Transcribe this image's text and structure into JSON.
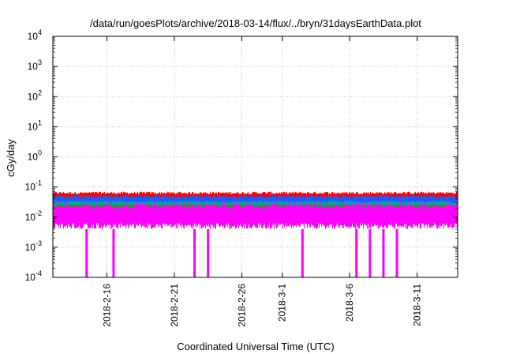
{
  "chart_data": {
    "type": "line",
    "title": "/data/run/goesPlots/archive/2018-03-14/flux/../bryn/31daysEarthData.plot",
    "xlabel": "Coordinated Universal Time (UTC)",
    "ylabel": "cGy/day",
    "yscale": "log",
    "ylim": [
      0.0001,
      10000
    ],
    "xlim": [
      "2018-02-12T00:00",
      "2018-03-14T00:00"
    ],
    "grid": true,
    "y_ticks": [
      {
        "value": 0.0001,
        "base": "10",
        "exp": "-4"
      },
      {
        "value": 0.001,
        "base": "10",
        "exp": "-3"
      },
      {
        "value": 0.01,
        "base": "10",
        "exp": "-2"
      },
      {
        "value": 0.1,
        "base": "10",
        "exp": "-1"
      },
      {
        "value": 1,
        "base": "10",
        "exp": "0"
      },
      {
        "value": 10,
        "base": "10",
        "exp": "1"
      },
      {
        "value": 100,
        "base": "10",
        "exp": "2"
      },
      {
        "value": 1000,
        "base": "10",
        "exp": "3"
      },
      {
        "value": 10000,
        "base": "10",
        "exp": "4"
      }
    ],
    "x_ticks": [
      "2018-2-16",
      "2018-2-21",
      "2018-2-26",
      "2018-3-1",
      "2018-3-6",
      "2018-3-11"
    ],
    "series": [
      {
        "color": "#ff0000",
        "typical_range": [
          0.03,
          0.07
        ]
      },
      {
        "color": "#1e5aff",
        "typical_range": [
          0.02,
          0.055
        ]
      },
      {
        "color": "#00a8a8",
        "typical_range": [
          0.015,
          0.035
        ]
      },
      {
        "color": "#00b000",
        "typical_range": [
          0.013,
          0.028
        ]
      },
      {
        "color": "#ff00ff",
        "typical_range": [
          0.004,
          0.03
        ],
        "dropouts": [
          "2018-02-14",
          "2018-02-16",
          "2018-02-22",
          "2018-02-23",
          "2018-03-02",
          "2018-03-06",
          "2018-03-07",
          "2018-03-08",
          "2018-03-09"
        ]
      }
    ]
  }
}
